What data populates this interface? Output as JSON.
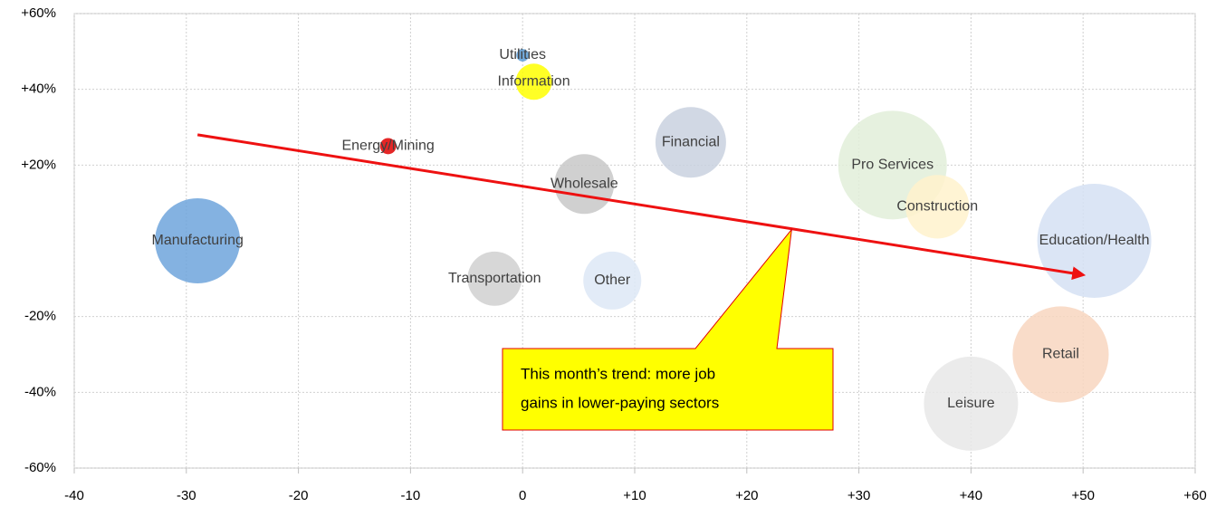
{
  "chart_data": {
    "type": "bubble",
    "categories": [
      "Manufacturing",
      "Utilities",
      "Information",
      "Energy/Mining",
      "Financial",
      "Wholesale",
      "Pro Services",
      "Construction",
      "Education/Health",
      "Transportation",
      "Other",
      "Retail",
      "Leisure"
    ],
    "x": [
      -29,
      0,
      1,
      -12,
      15,
      5.5,
      33,
      37,
      51,
      -2.5,
      8,
      48,
      40
    ],
    "values": [
      0,
      49,
      42,
      25,
      26,
      15,
      20,
      9,
      0,
      -10,
      -10.5,
      -30,
      -43
    ],
    "sizes": [
      138,
      3,
      25,
      5,
      95,
      68,
      225,
      77,
      248,
      56,
      64,
      176,
      169
    ],
    "colors": [
      "#6fa5dc",
      "#5b9bd5",
      "#ffff00",
      "#e00000",
      "#c9d1df",
      "#c8c8c8",
      "#e2efd9",
      "#fff2cc",
      "#d5e0f3",
      "#d0d0d0",
      "#dde8f6",
      "#f8d6c0",
      "#e8e8e8"
    ],
    "xlim": [
      -40,
      60
    ],
    "xticks": [
      -40,
      -30,
      -20,
      -10,
      0,
      {
        "value": 10,
        "label": "+10"
      },
      {
        "value": 20,
        "label": "+20"
      },
      {
        "value": 30,
        "label": "+30"
      },
      {
        "value": 40,
        "label": "+40"
      },
      {
        "value": 50,
        "label": "+50"
      },
      {
        "value": 60,
        "label": "+60"
      }
    ],
    "ylim": [
      -60,
      60
    ],
    "yticks": [
      {
        "value": 60,
        "label": "+60%"
      },
      {
        "value": 40,
        "label": "+40%"
      },
      {
        "value": 20,
        "label": "+20%"
      },
      {
        "value": -20,
        "label": "-20%"
      },
      {
        "value": -40,
        "label": "-40%"
      },
      {
        "value": -60,
        "label": "-60%"
      }
    ],
    "grid": true,
    "trend": {
      "x": [
        -29,
        50
      ],
      "y": [
        28,
        -9
      ],
      "color": "#ee1111"
    },
    "annotation": {
      "lines": [
        "This month’s trend: more job",
        "gains in lower-paying sectors"
      ],
      "x": 24,
      "y": 3,
      "fill": "#ffff00",
      "border": "#e00000"
    }
  }
}
